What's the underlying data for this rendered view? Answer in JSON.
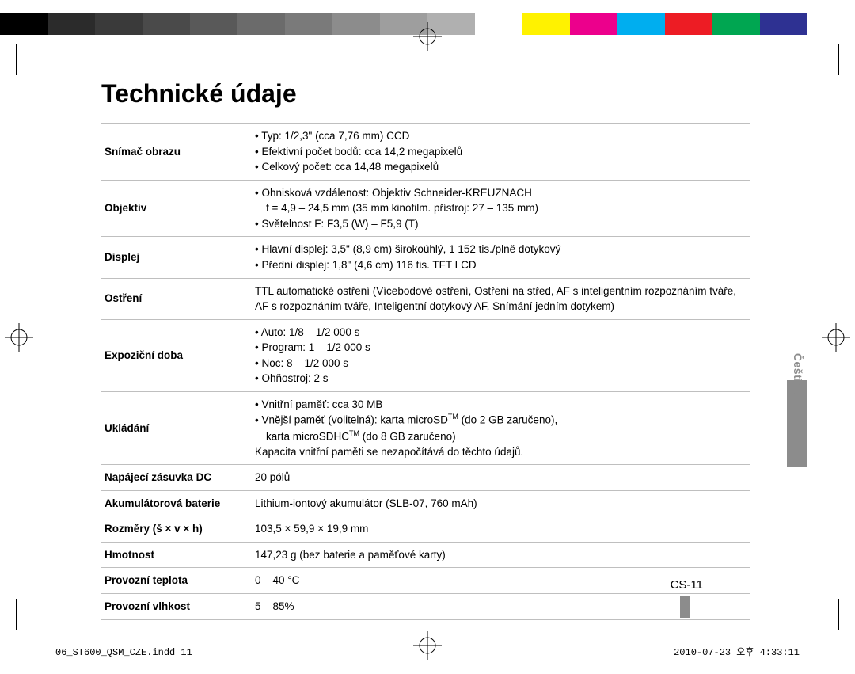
{
  "colorbar": [
    "#000000",
    "#2b2b2b",
    "#3a3a3a",
    "#4a4a4a",
    "#595959",
    "#6b6b6b",
    "#7a7a7a",
    "#8c8c8c",
    "#9e9e9e",
    "#b0b0b0",
    "#ffffff",
    "#fff200",
    "#ec008c",
    "#00aeef",
    "#ed1c24",
    "#00a651",
    "#2e3192",
    "#ffffff"
  ],
  "title": "Technické údaje",
  "rows": {
    "r1_label": "Snímač obrazu",
    "r1_b1": "Typ: 1/2,3\" (cca 7,76 mm) CCD",
    "r1_b2": "Efektivní počet bodů: cca 14,2 megapixelů",
    "r1_b3": "Celkový počet: cca 14,48 megapixelů",
    "r2_label": "Objektiv",
    "r2_b1": "Ohnisková vzdálenost: Objektiv Schneider-KREUZNACH",
    "r2_b1s": "f = 4,9 – 24,5 mm (35 mm kinofilm. přístroj: 27 – 135 mm)",
    "r2_b2": "Světelnost F: F3,5 (W) – F5,9 (T)",
    "r3_label": "Displej",
    "r3_b1": "Hlavní displej: 3,5\" (8,9 cm) širokoúhlý, 1 152 tis./plně dotykový",
    "r3_b2": "Přední displej: 1,8\" (4,6 cm) 116 tis. TFT LCD",
    "r4_label": "Ostření",
    "r4_v": "TTL automatické ostření (Vícebodové ostření, Ostření na střed, AF s inteligentním rozpoznáním tváře, AF s rozpoznáním tváře, Inteligentní dotykový AF, Snímání jedním dotykem)",
    "r5_label": "Expoziční doba",
    "r5_b1": "Auto: 1/8 – 1/2 000 s",
    "r5_b2": "Program: 1 – 1/2 000 s",
    "r5_b3": "Noc: 8 – 1/2 000 s",
    "r5_b4": "Ohňostroj: 2 s",
    "r6_label": "Ukládání",
    "r6_b1": "Vnitřní paměť: cca 30 MB",
    "r6_b2a": "Vnější paměť (volitelná): karta microSD",
    "r6_b2b": " (do 2 GB zaručeno),",
    "r6_b2s_a": "karta microSDHC",
    "r6_b2s_b": " (do 8 GB zaručeno)",
    "r6_note": "Kapacita vnitřní paměti se nezapočítává do těchto údajů.",
    "r7_label": "Napájecí zásuvka DC",
    "r7_v": "20 pólů",
    "r8_label": "Akumulátorová baterie",
    "r8_v": "Lithium-iontový akumulátor (SLB-07, 760 mAh)",
    "r9_label": "Rozměry (š × v × h)",
    "r9_v": "103,5 × 59,9 × 19,9 mm",
    "r10_label": "Hmotnost",
    "r10_v": "147,23 g (bez baterie a paměťové karty)",
    "r11_label": "Provozní teplota",
    "r11_v": "0 – 40 °C",
    "r12_label": "Provozní vlhkost",
    "r12_v": "5 – 85%"
  },
  "side_label": "Čeština",
  "page_number": "CS-11",
  "footer_left": "06_ST600_QSM_CZE.indd   11",
  "footer_right": "2010-07-23   오후 4:33:11",
  "tm": "TM"
}
